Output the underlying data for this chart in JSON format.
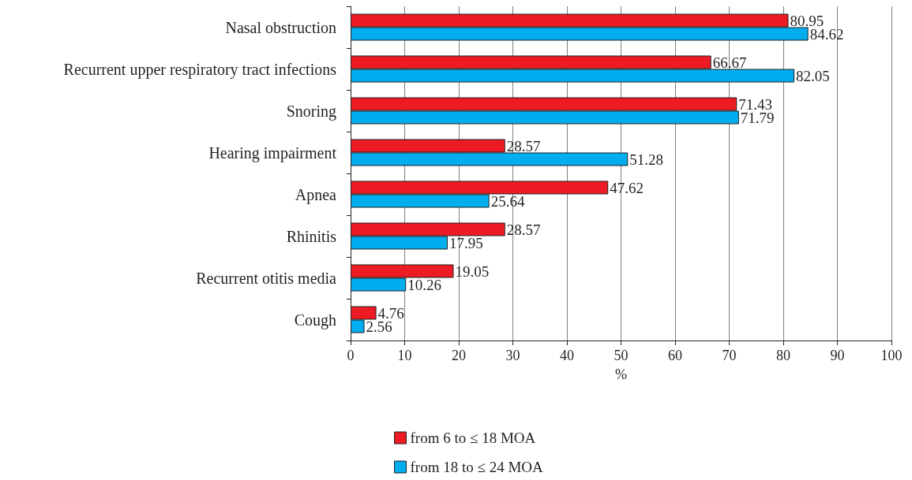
{
  "chart_data": {
    "type": "bar",
    "orientation": "horizontal",
    "categories": [
      "Nasal obstruction",
      "Recurrent upper respiratory tract infections",
      "Snoring",
      "Hearing impairment",
      "Apnea",
      "Rhinitis",
      "Recurrent otitis media",
      "Cough"
    ],
    "series": [
      {
        "name": "from 6 to ≤ 18 MOA",
        "color": "#ed1c24",
        "values": [
          80.95,
          66.67,
          71.43,
          28.57,
          47.62,
          28.57,
          19.05,
          4.76
        ]
      },
      {
        "name": "from 18 to ≤ 24 MOA",
        "color": "#00aeef",
        "values": [
          84.62,
          82.05,
          71.79,
          51.28,
          25.64,
          17.95,
          10.26,
          2.56
        ]
      }
    ],
    "xlabel": "%",
    "xlim": [
      0,
      100
    ],
    "xticks": [
      0,
      10,
      20,
      30,
      40,
      50,
      60,
      70,
      80,
      90,
      100
    ],
    "grid": "x",
    "legend": "bottom",
    "data_labels": true
  }
}
